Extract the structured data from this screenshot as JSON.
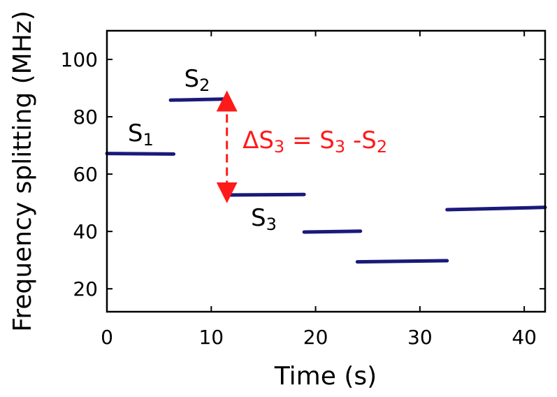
{
  "chart_data": {
    "type": "line",
    "xlabel": "Time (s)",
    "ylabel": "Frequency splitting (MHz)",
    "xlim": [
      0,
      42
    ],
    "ylim": [
      12,
      110
    ],
    "xticks": [
      "0",
      "10",
      "20",
      "30",
      "40"
    ],
    "yticks": [
      "20",
      "40",
      "60",
      "80",
      "100"
    ],
    "grid": false,
    "series_color": "#1a1a7a",
    "segments": [
      {
        "x": [
          0,
          6.4
        ],
        "y": [
          67.2,
          67.0
        ]
      },
      {
        "x": [
          6.1,
          11.6
        ],
        "y": [
          85.8,
          86.2
        ]
      },
      {
        "x": [
          11.4,
          18.9
        ],
        "y": [
          52.7,
          52.9
        ]
      },
      {
        "x": [
          18.9,
          24.3
        ],
        "y": [
          39.8,
          40.1
        ]
      },
      {
        "x": [
          24.0,
          32.6
        ],
        "y": [
          29.4,
          29.8
        ]
      },
      {
        "x": [
          32.6,
          42.0
        ],
        "y": [
          47.6,
          48.4
        ]
      }
    ],
    "step_labels": [
      {
        "main": "S",
        "sub": "1",
        "x": 2.0,
        "y": 71.5
      },
      {
        "main": "S",
        "sub": "2",
        "x": 7.4,
        "y": 90.5
      },
      {
        "main": "S",
        "sub": "3",
        "x": 13.8,
        "y": 42.0
      }
    ],
    "annotation": {
      "color": "#ff1a1a",
      "arrow_x": 11.5,
      "arrow_from_y": 85.5,
      "arrow_to_y": 53.5,
      "text_x": 13.0,
      "text_y": 69.0,
      "parts": [
        {
          "t": "ΔS",
          "sub": false
        },
        {
          "t": "3",
          "sub": true
        },
        {
          "t": " = S",
          "sub": false
        },
        {
          "t": "3",
          "sub": true
        },
        {
          "t": " -S",
          "sub": false
        },
        {
          "t": "2",
          "sub": true
        }
      ]
    }
  }
}
